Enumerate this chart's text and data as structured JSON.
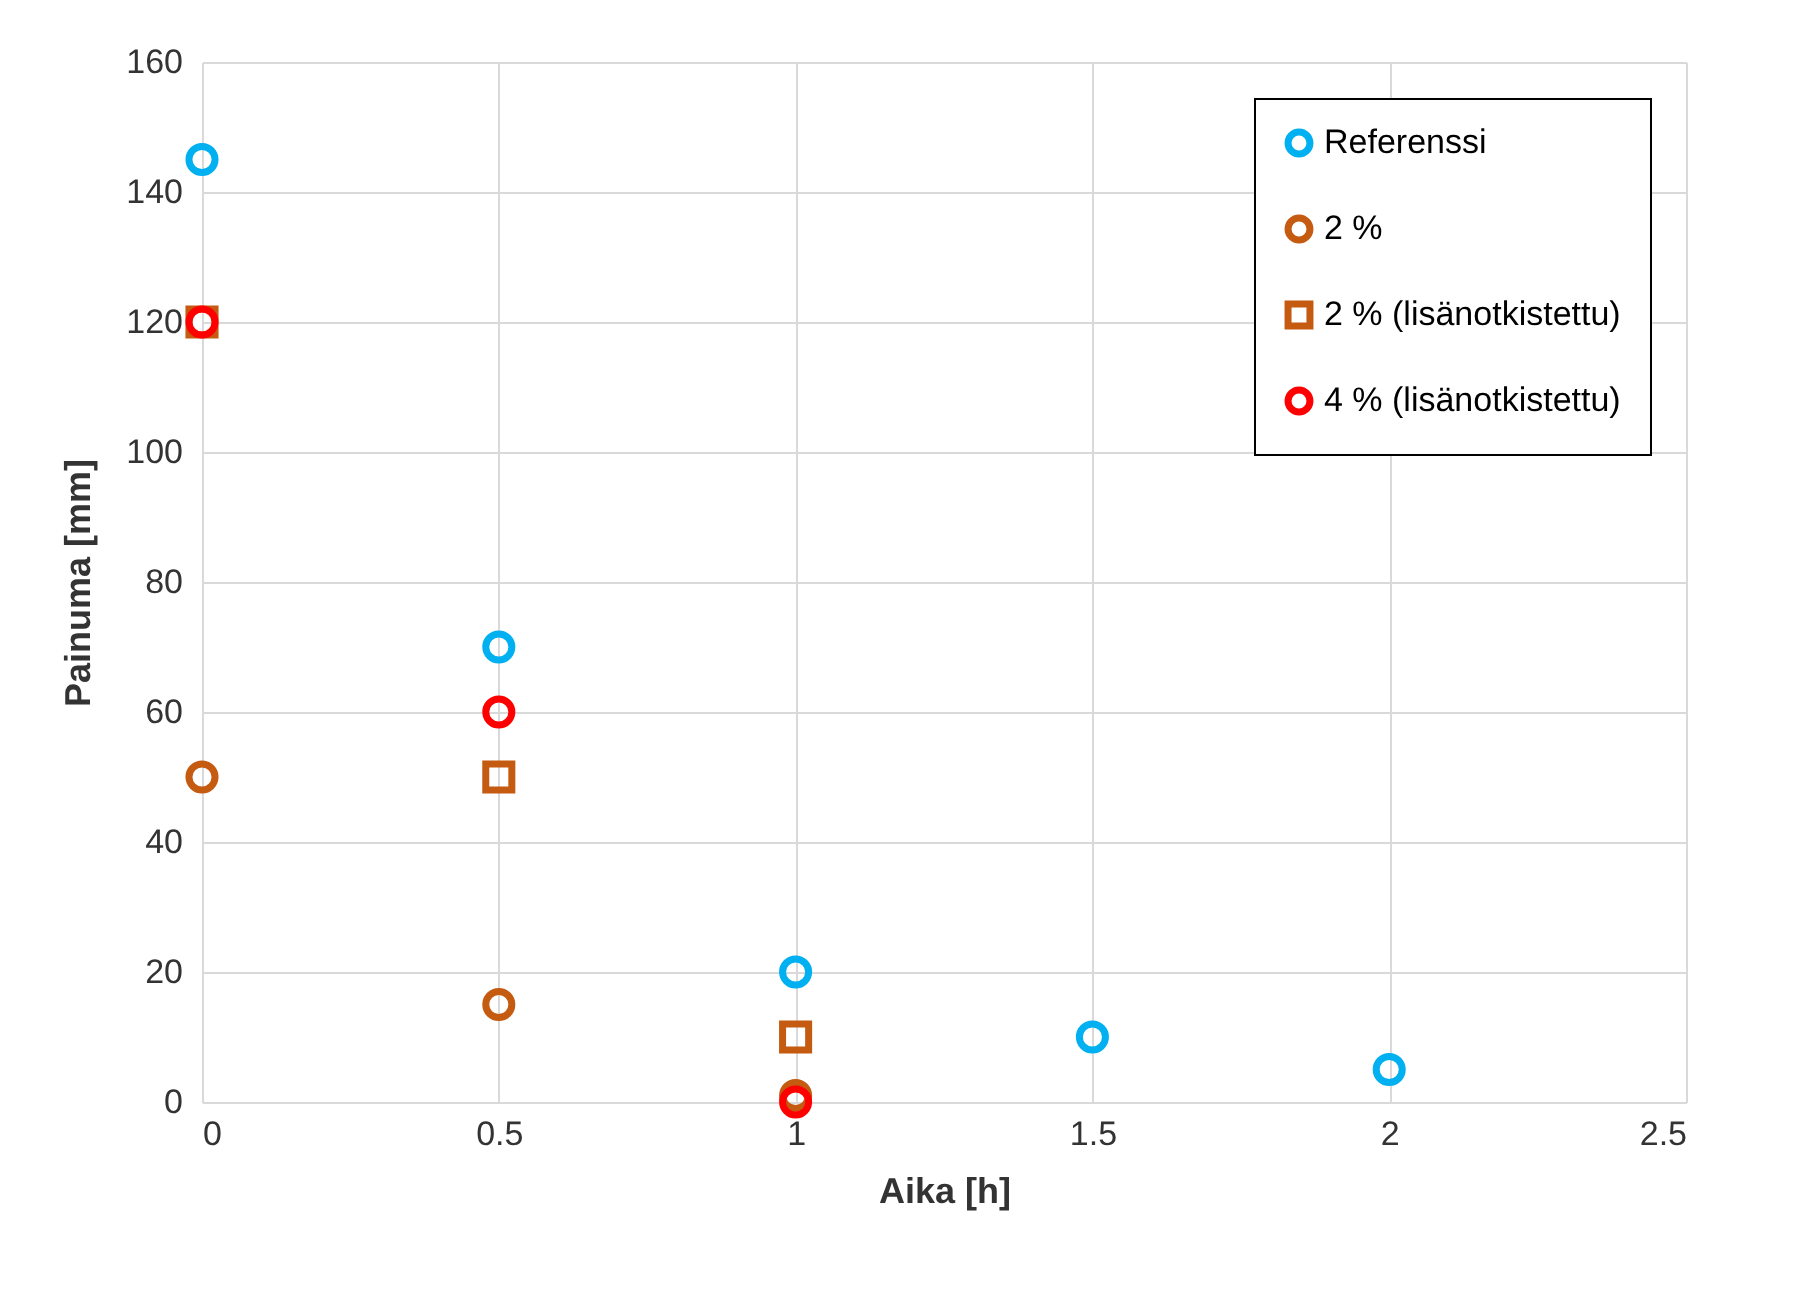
{
  "chart_data": {
    "type": "scatter",
    "xlabel": "Aika [h]",
    "ylabel": "Painuma [mm]",
    "xlim": [
      0,
      2.5
    ],
    "xticks": [
      0,
      0.5,
      1,
      1.5,
      2,
      2.5
    ],
    "ylim": [
      0,
      160
    ],
    "yticks": [
      0,
      20,
      40,
      60,
      80,
      100,
      120,
      140,
      160
    ],
    "grid": true,
    "legend": "top right",
    "series": [
      {
        "name": "Referenssi",
        "color": "#00b0f0",
        "marker": "circle",
        "x": [
          0,
          0.5,
          1,
          1.5,
          2
        ],
        "values": [
          145,
          70,
          20,
          10,
          5
        ]
      },
      {
        "name": "2 %",
        "color": "#c55a11",
        "marker": "circle",
        "x": [
          0,
          0.5,
          1
        ],
        "values": [
          50,
          15,
          1
        ]
      },
      {
        "name": "2 % (lisänotkistettu)",
        "color": "#c55a11",
        "marker": "square",
        "x": [
          0,
          0.5,
          1
        ],
        "values": [
          120,
          50,
          10
        ]
      },
      {
        "name": "4 % (lisänotkistettu)",
        "color": "#ff0000",
        "marker": "circle",
        "x": [
          0,
          0.5,
          1
        ],
        "values": [
          120,
          60,
          0
        ]
      }
    ]
  }
}
